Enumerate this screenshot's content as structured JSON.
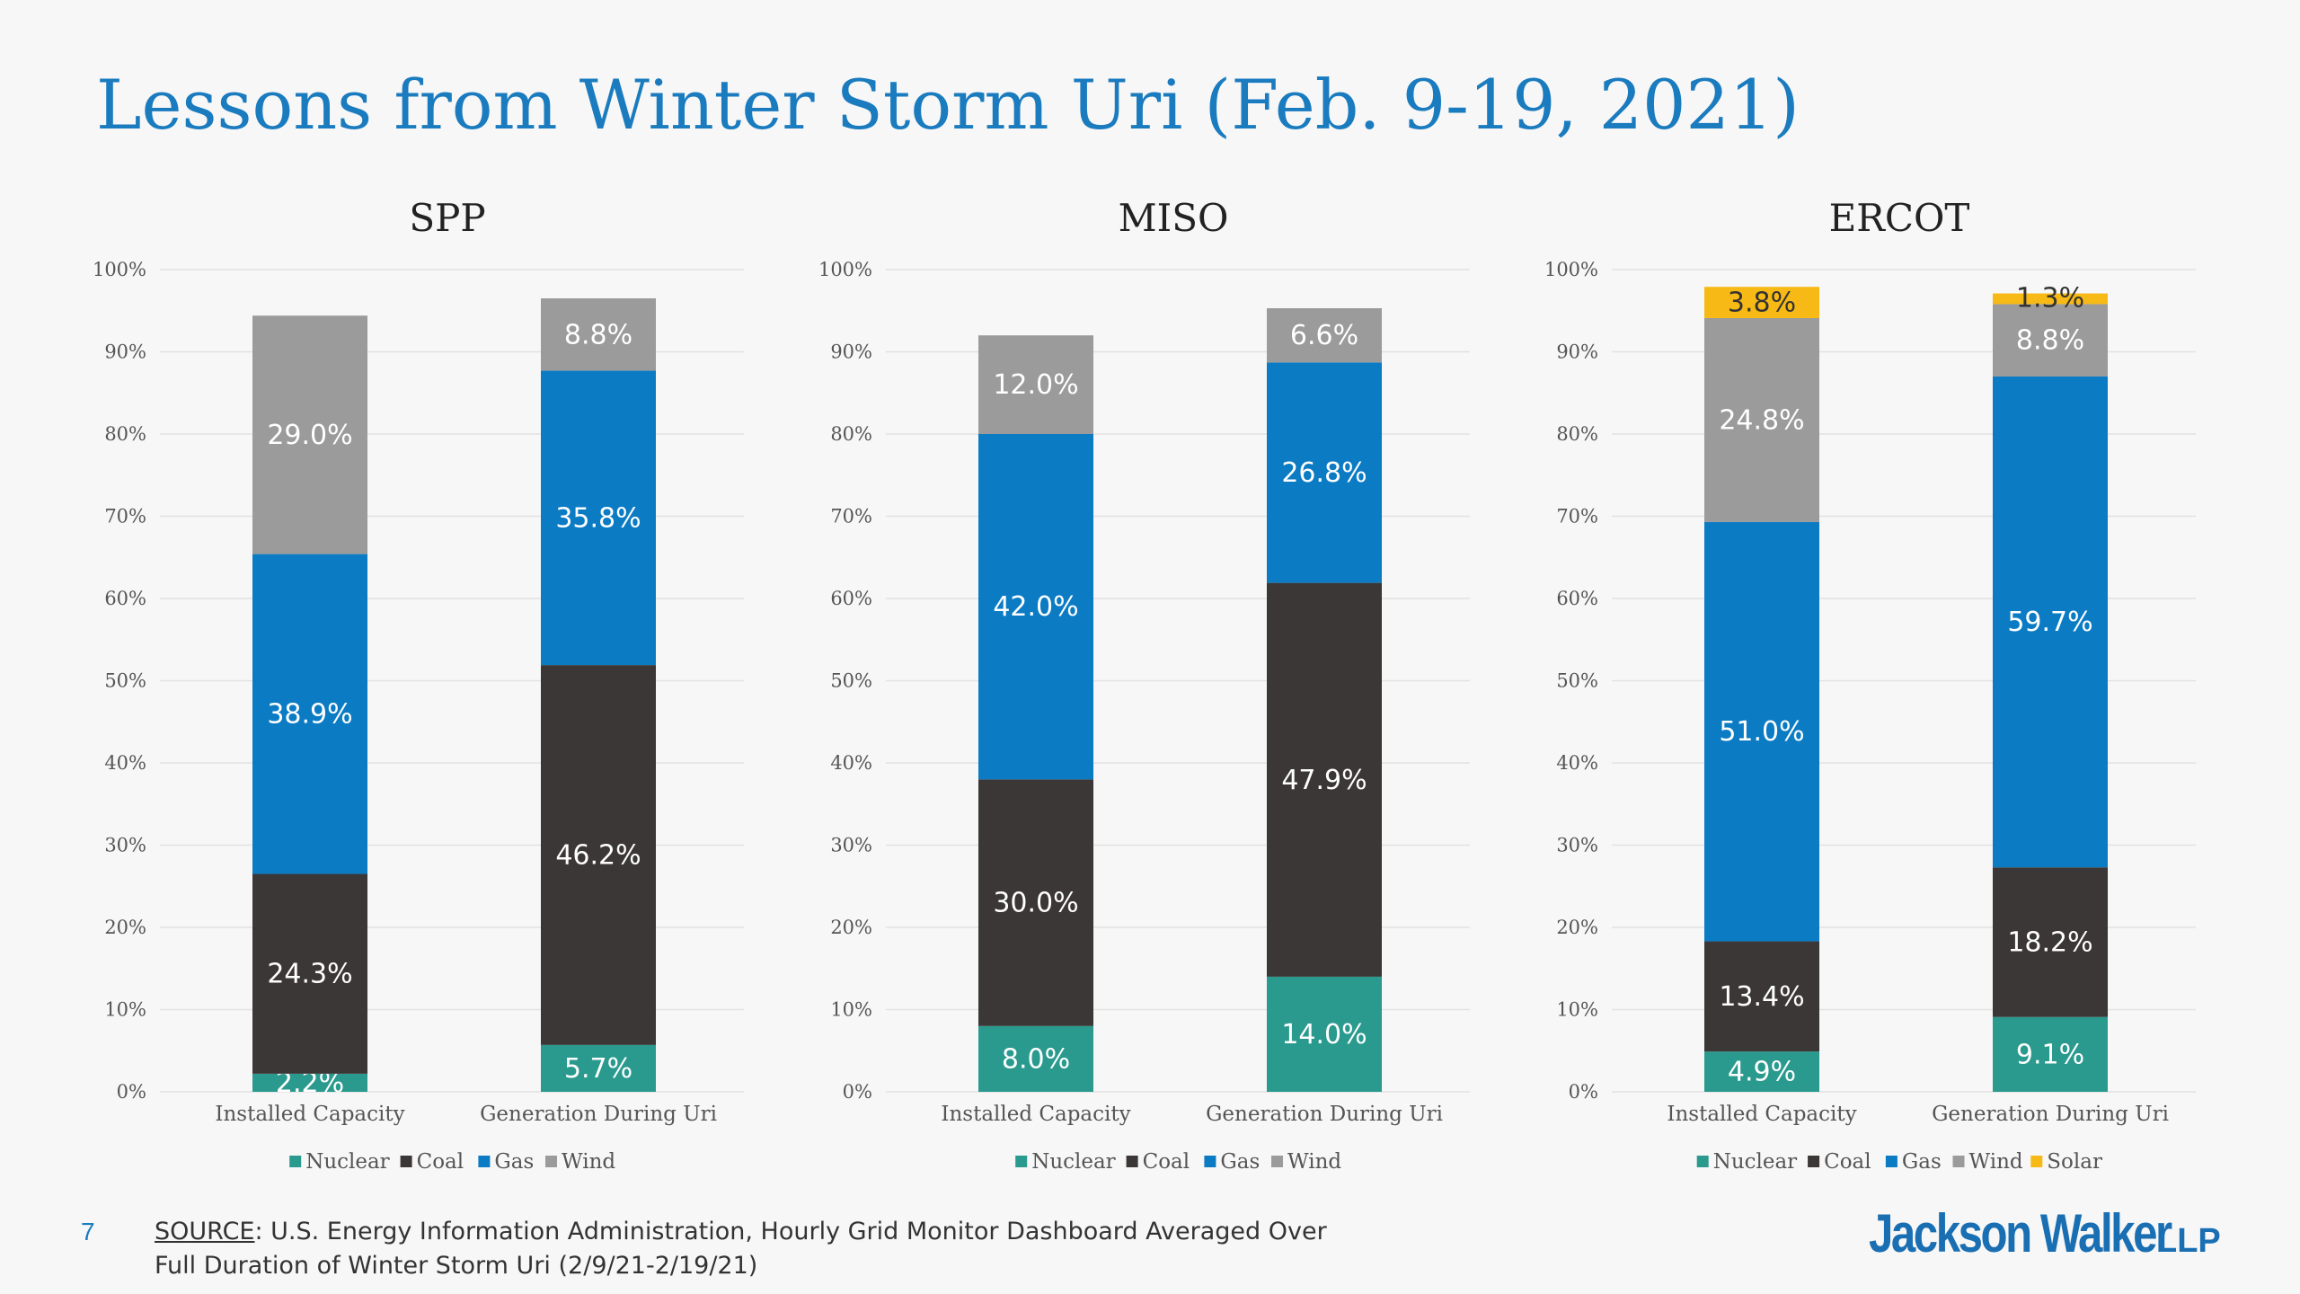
{
  "slide": {
    "title": "Lessons from Winter Storm Uri (Feb. 9-19, 2021)",
    "page_number": "7",
    "source_label": "SOURCE",
    "source_text_line1": ": U.S. Energy Information Administration, Hourly Grid Monitor Dashboard Averaged Over",
    "source_text_line2": "Full Duration of Winter Storm Uri (2/9/21-2/19/21)",
    "logo_text": "Jackson Walker",
    "logo_suffix": "LLP"
  },
  "colors": {
    "Nuclear": "#2a9a8e",
    "Coal": "#3a3736",
    "Gas": "#0b7bc4",
    "Wind": "#9b9b9b",
    "Solar": "#f7b915",
    "title": "#1a7bbf"
  },
  "chart_data": [
    {
      "type": "bar",
      "stacked": true,
      "title": "SPP",
      "categories": [
        "Installed Capacity",
        "Generation During Uri"
      ],
      "y_ticks": [
        "0%",
        "10%",
        "20%",
        "30%",
        "40%",
        "50%",
        "60%",
        "70%",
        "80%",
        "90%",
        "100%"
      ],
      "ylim": [
        0,
        100
      ],
      "grid": true,
      "legend": "bottom",
      "series": [
        {
          "name": "Nuclear",
          "values": [
            2.2,
            5.7
          ],
          "labels": [
            "2.2%",
            "5.7%"
          ]
        },
        {
          "name": "Coal",
          "values": [
            24.3,
            46.2
          ],
          "labels": [
            "24.3%",
            "46.2%"
          ]
        },
        {
          "name": "Gas",
          "values": [
            38.9,
            35.8
          ],
          "labels": [
            "38.9%",
            "35.8%"
          ]
        },
        {
          "name": "Wind",
          "values": [
            29.0,
            8.8
          ],
          "labels": [
            "29.0%",
            "8.8%"
          ]
        }
      ]
    },
    {
      "type": "bar",
      "stacked": true,
      "title": "MISO",
      "categories": [
        "Installed Capacity",
        "Generation During Uri"
      ],
      "y_ticks": [
        "0%",
        "10%",
        "20%",
        "30%",
        "40%",
        "50%",
        "60%",
        "70%",
        "80%",
        "90%",
        "100%"
      ],
      "ylim": [
        0,
        100
      ],
      "grid": true,
      "legend": "bottom",
      "series": [
        {
          "name": "Nuclear",
          "values": [
            8.0,
            14.0
          ],
          "labels": [
            "8.0%",
            "14.0%"
          ]
        },
        {
          "name": "Coal",
          "values": [
            30.0,
            47.9
          ],
          "labels": [
            "30.0%",
            "47.9%"
          ]
        },
        {
          "name": "Gas",
          "values": [
            42.0,
            26.8
          ],
          "labels": [
            "42.0%",
            "26.8%"
          ]
        },
        {
          "name": "Wind",
          "values": [
            12.0,
            6.6
          ],
          "labels": [
            "12.0%",
            "6.6%"
          ]
        }
      ]
    },
    {
      "type": "bar",
      "stacked": true,
      "title": "ERCOT",
      "categories": [
        "Installed Capacity",
        "Generation During Uri"
      ],
      "y_ticks": [
        "0%",
        "10%",
        "20%",
        "30%",
        "40%",
        "50%",
        "60%",
        "70%",
        "80%",
        "90%",
        "100%"
      ],
      "ylim": [
        0,
        100
      ],
      "grid": true,
      "legend": "bottom",
      "series": [
        {
          "name": "Nuclear",
          "values": [
            4.9,
            9.1
          ],
          "labels": [
            "4.9%",
            "9.1%"
          ]
        },
        {
          "name": "Coal",
          "values": [
            13.4,
            18.2
          ],
          "labels": [
            "13.4%",
            "18.2%"
          ]
        },
        {
          "name": "Gas",
          "values": [
            51.0,
            59.7
          ],
          "labels": [
            "51.0%",
            "59.7%"
          ]
        },
        {
          "name": "Wind",
          "values": [
            24.8,
            8.8
          ],
          "labels": [
            "24.8%",
            "8.8%"
          ]
        },
        {
          "name": "Solar",
          "values": [
            3.8,
            1.3
          ],
          "labels": [
            "3.8%",
            "1.3%"
          ]
        }
      ]
    }
  ]
}
